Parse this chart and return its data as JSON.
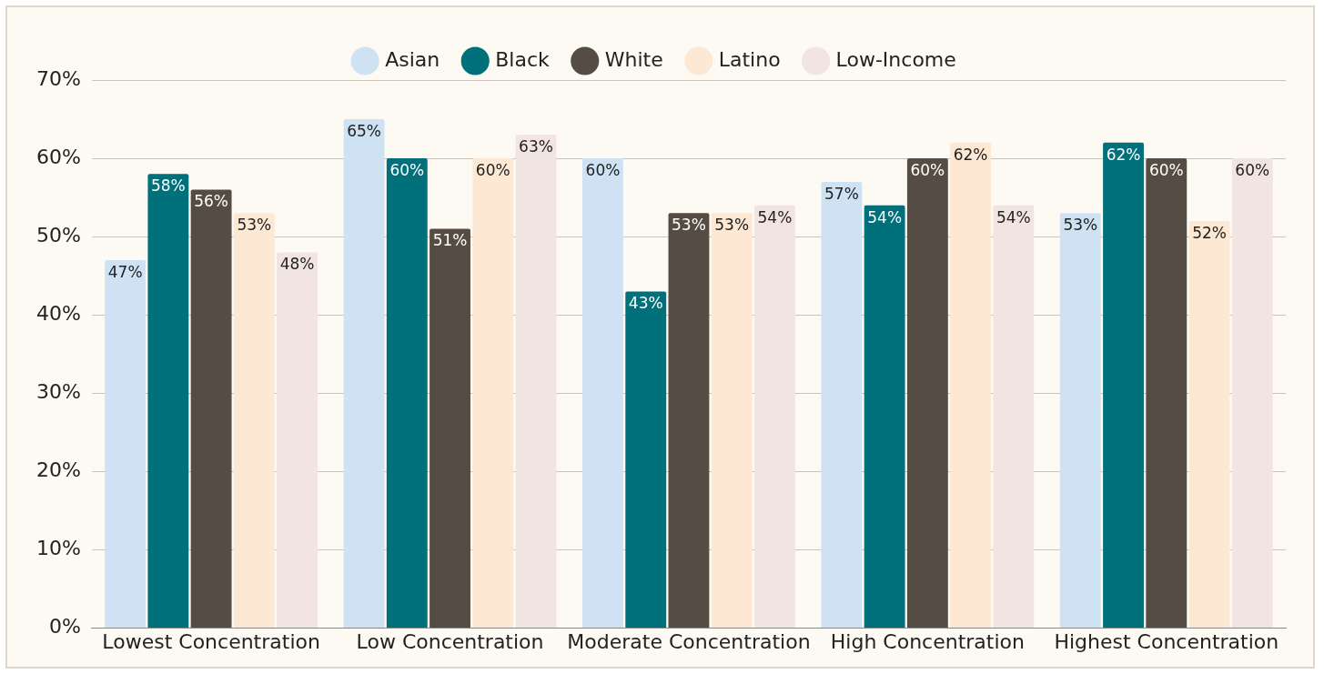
{
  "chart_data": {
    "type": "bar",
    "categories": [
      "Lowest Concentration",
      "Low Concentration",
      "Moderate Concentration",
      "High Concentration",
      "Highest Concentration"
    ],
    "series": [
      {
        "name": "Asian",
        "color": "#cfe2f3",
        "values": [
          47,
          65,
          60,
          57,
          53
        ],
        "value_labels": [
          "47%",
          "65%",
          "60%",
          "57%",
          "53%"
        ]
      },
      {
        "name": "Black",
        "color": "#00717a",
        "values": [
          58,
          60,
          43,
          54,
          62
        ],
        "value_labels": [
          "58%",
          "60%",
          "43%",
          "54%",
          "62%"
        ]
      },
      {
        "name": "White",
        "color": "#554d44",
        "values": [
          56,
          51,
          53,
          60,
          60
        ],
        "value_labels": [
          "56%",
          "51%",
          "53%",
          "60%",
          "60%"
        ]
      },
      {
        "name": "Latino",
        "color": "#fde9d3",
        "values": [
          53,
          60,
          53,
          62,
          52
        ],
        "value_labels": [
          "53%",
          "60%",
          "53%",
          "62%",
          "52%"
        ]
      },
      {
        "name": "Low-Income",
        "color": "#f2e4e1",
        "values": [
          48,
          63,
          54,
          54,
          60
        ],
        "value_labels": [
          "48%",
          "63%",
          "54%",
          "54%",
          "60%"
        ]
      }
    ],
    "ylim": [
      0,
      70
    ],
    "yticks": [
      {
        "value": 0,
        "label": "0%"
      },
      {
        "value": 10,
        "label": "10%"
      },
      {
        "value": 20,
        "label": "20%"
      },
      {
        "value": 30,
        "label": "30%"
      },
      {
        "value": 40,
        "label": "40%"
      },
      {
        "value": 50,
        "label": "50%"
      },
      {
        "value": 60,
        "label": "60%"
      },
      {
        "value": 70,
        "label": "70%"
      }
    ],
    "grid": "y",
    "legend": "top"
  }
}
